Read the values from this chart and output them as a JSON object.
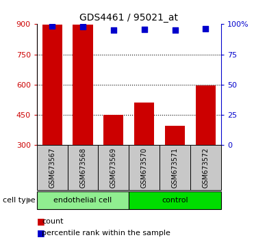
{
  "title": "GDS4461 / 95021_at",
  "samples": [
    "GSM673567",
    "GSM673568",
    "GSM673569",
    "GSM673570",
    "GSM673571",
    "GSM673572"
  ],
  "counts": [
    898,
    897,
    450,
    510,
    395,
    595
  ],
  "percentiles": [
    98.5,
    98.0,
    95.0,
    95.5,
    95.0,
    96.0
  ],
  "groups": [
    {
      "label": "endothelial cell",
      "indices": [
        0,
        1,
        2
      ],
      "color": "#90EE90"
    },
    {
      "label": "control",
      "indices": [
        3,
        4,
        5
      ],
      "color": "#00DD00"
    }
  ],
  "bar_color": "#CC0000",
  "dot_color": "#0000CC",
  "left_axis_color": "#CC0000",
  "right_axis_color": "#0000CC",
  "ylim_left": [
    300,
    900
  ],
  "ylim_right": [
    0,
    100
  ],
  "yticks_left": [
    300,
    450,
    600,
    750,
    900
  ],
  "yticks_right": [
    0,
    25,
    50,
    75,
    100
  ],
  "xticklabel_bg": "#C8C8C8",
  "bar_width": 0.65,
  "dot_size": 28,
  "title_fontsize": 10,
  "tick_fontsize": 8,
  "label_fontsize": 8,
  "legend_fontsize": 8
}
